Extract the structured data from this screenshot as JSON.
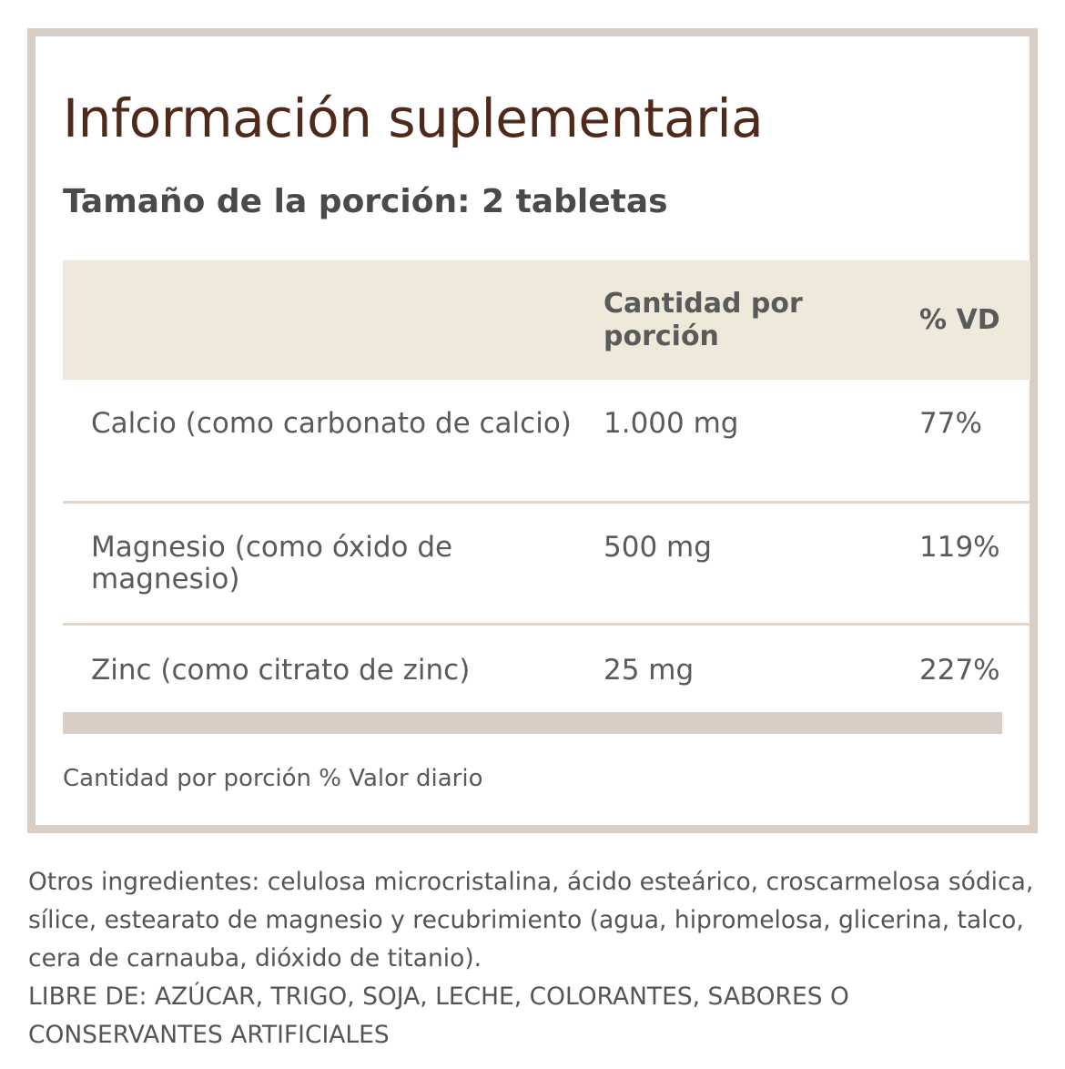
{
  "title": "Información suplementaria",
  "serving_size": "Tamaño de la porción: 2 tabletas",
  "table": {
    "headers": {
      "name": "",
      "amount": "Cantidad por porción",
      "dv": "% VD"
    },
    "rows": [
      {
        "name": "Calcio (como carbonato de calcio)",
        "amount": "1.000 mg",
        "dv": "77%"
      },
      {
        "name": "Magnesio (como óxido de magnesio)",
        "amount": "500 mg",
        "dv": "119%"
      },
      {
        "name": "Zinc (como citrato de zinc)",
        "amount": "25 mg",
        "dv": "227%"
      }
    ]
  },
  "footnote": "Cantidad por porción % Valor diario",
  "other_ingredients": "Otros ingredientes: celulosa microcristalina, ácido esteárico, croscarmelosa sódica, sílice, estearato de magnesio y recubrimiento (agua, hipromelosa, glicerina, talco, cera de carnauba, dióxido de titanio).",
  "free_from": "LIBRE DE: AZÚCAR, TRIGO, SOJA, LECHE, COLORANTES, SABORES O CONSERVANTES ARTIFICIALES",
  "colors": {
    "title": "#4f2a1b",
    "border": "#d9cec5",
    "header_bg": "#efe9dc",
    "text": "#555555"
  }
}
